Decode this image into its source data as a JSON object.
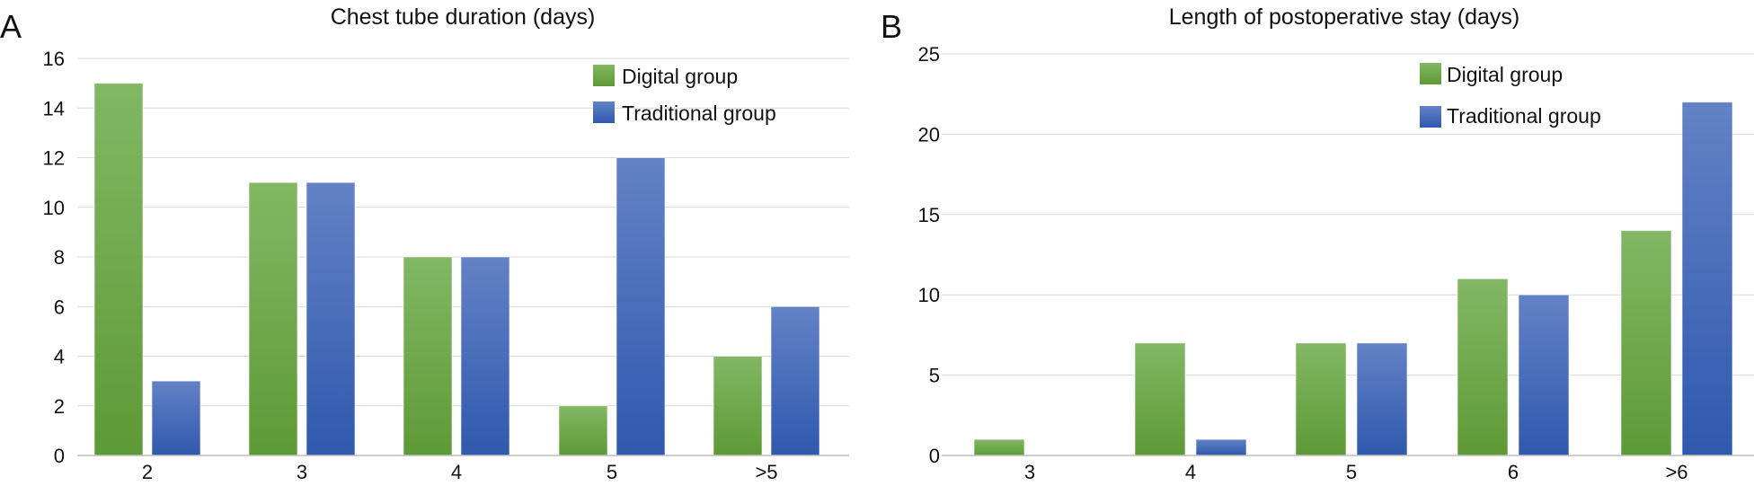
{
  "colors": {
    "digital_top": "#82b764",
    "digital_bottom": "#5d9a36",
    "traditional_top": "#6382c6",
    "traditional_bottom": "#2f59ad",
    "grid": "#d9d9d9",
    "axis": "#bfbfbf",
    "text": "#111111"
  },
  "chart_data": [
    {
      "panel_label": "A",
      "type": "bar",
      "title": "Chest tube duration (days)",
      "xlabel": "",
      "ylabel": "",
      "categories": [
        "2",
        "3",
        "4",
        "5",
        ">5"
      ],
      "series": [
        {
          "name": "Digital group",
          "values": [
            15,
            11,
            8,
            2,
            4
          ]
        },
        {
          "name": "Traditional group",
          "values": [
            3,
            11,
            8,
            12,
            6
          ]
        }
      ],
      "ylim": [
        0,
        16
      ],
      "yticks": [
        "0",
        "2",
        "4",
        "6",
        "8",
        "10",
        "12",
        "14",
        "16"
      ],
      "grid": true,
      "legend": "top-right"
    },
    {
      "panel_label": "B",
      "type": "bar",
      "title": "Length of postoperative stay (days)",
      "xlabel": "",
      "ylabel": "",
      "categories": [
        "3",
        "4",
        "5",
        "6",
        ">6"
      ],
      "series": [
        {
          "name": "Digital group",
          "values": [
            1,
            7,
            7,
            11,
            14
          ]
        },
        {
          "name": "Traditional group",
          "values": [
            0,
            1,
            7,
            10,
            22
          ]
        }
      ],
      "ylim": [
        0,
        25
      ],
      "yticks": [
        "0",
        "5",
        "10",
        "15",
        "20",
        "25"
      ],
      "grid": true,
      "legend": "top-right"
    }
  ]
}
